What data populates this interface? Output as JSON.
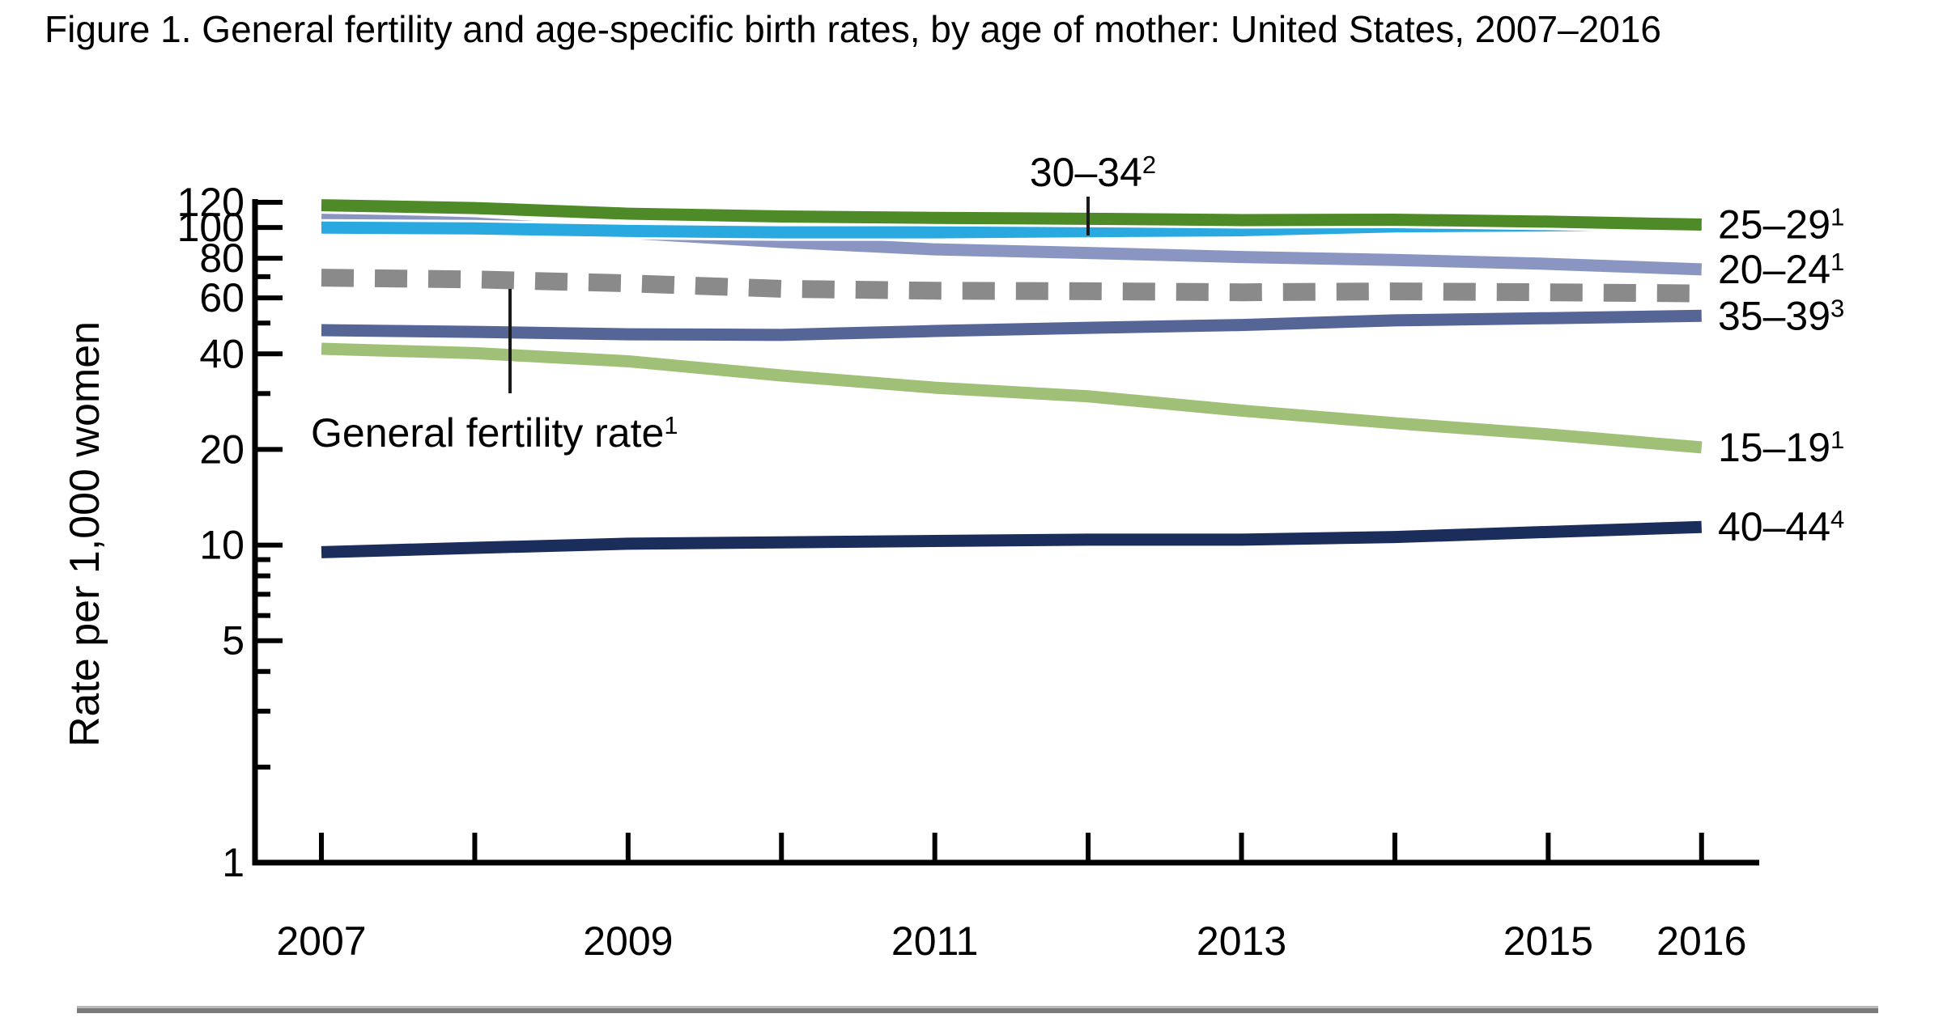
{
  "chart_data": {
    "type": "line",
    "title": "Figure 1. General fertility and age-specific birth rates, by age of mother: United States, 2007–2016",
    "xlabel": "",
    "ylabel": "Rate per 1,000 women",
    "y_scale": "log",
    "ylim": [
      1,
      120
    ],
    "y_major_ticks": [
      120,
      100,
      80,
      60,
      40,
      20,
      10,
      5,
      1
    ],
    "y_minor_ticks": [
      70,
      50,
      30,
      9,
      8,
      7,
      6,
      4,
      3,
      2
    ],
    "x": [
      2007,
      2008,
      2009,
      2010,
      2011,
      2012,
      2013,
      2014,
      2015,
      2016
    ],
    "x_labeled_ticks": [
      2007,
      2009,
      2011,
      2013,
      2015,
      2016
    ],
    "grid": false,
    "legend_position": "right-edge-labels",
    "series": [
      {
        "name": "20–24",
        "superscript": "1",
        "color": "#8a96c1",
        "style": "solid",
        "values": [
          106.3,
          103.0,
          96.2,
          90.0,
          85.3,
          83.1,
          80.7,
          79.0,
          76.8,
          73.8
        ]
      },
      {
        "name": "30–34",
        "superscript": "2",
        "color": "#2aa9e0",
        "style": "solid",
        "values": [
          99.9,
          99.3,
          97.5,
          96.5,
          96.5,
          97.3,
          98.0,
          100.8,
          101.5,
          102.7
        ]
      },
      {
        "name": "25–29",
        "superscript": "1",
        "color": "#4e8a28",
        "style": "solid",
        "values": [
          117.5,
          115.1,
          110.5,
          108.3,
          107.2,
          106.5,
          105.5,
          105.8,
          104.3,
          102.1
        ]
      },
      {
        "name": "General fertility rate",
        "superscript": "1",
        "color": "#8a8a8a",
        "style": "dashed",
        "values": [
          69.5,
          68.6,
          66.7,
          64.1,
          63.2,
          63.0,
          62.5,
          62.9,
          62.5,
          62.0
        ]
      },
      {
        "name": "35–39",
        "superscript": "3",
        "color": "#556596",
        "style": "solid",
        "values": [
          47.5,
          46.9,
          46.1,
          45.9,
          47.2,
          48.3,
          49.3,
          51.0,
          51.8,
          52.7
        ]
      },
      {
        "name": "15–19",
        "superscript": "1",
        "color": "#a0c078",
        "style": "solid",
        "values": [
          41.5,
          40.2,
          37.9,
          34.2,
          31.3,
          29.4,
          26.5,
          24.2,
          22.3,
          20.3
        ]
      },
      {
        "name": "40–44",
        "superscript": "4",
        "color": "#1b2d5b",
        "style": "solid",
        "values": [
          9.5,
          9.8,
          10.1,
          10.2,
          10.3,
          10.4,
          10.4,
          10.6,
          11.0,
          11.4
        ]
      }
    ],
    "right_edge_labels": [
      "25–29",
      "20–24",
      "35–39",
      "15–19",
      "40–44"
    ],
    "annotations": [
      {
        "series": "30–34"
      },
      {
        "series": "General fertility rate"
      }
    ],
    "axis_color": "#000000",
    "bottom_rule_colors": [
      "#b9b9b9",
      "#7a7a7a"
    ]
  }
}
